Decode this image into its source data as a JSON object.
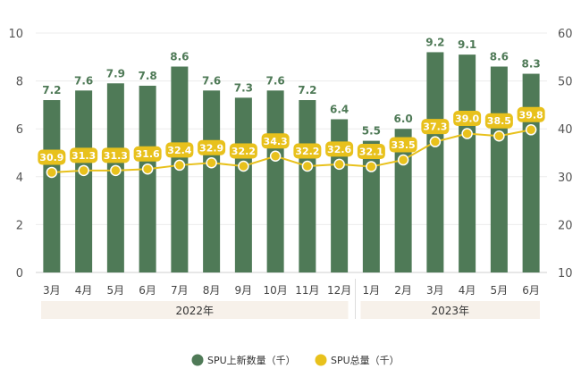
{
  "chart_data": {
    "type": "bar",
    "categories": [
      "3月",
      "4月",
      "5月",
      "6月",
      "7月",
      "8月",
      "9月",
      "10月",
      "11月",
      "12月",
      "1月",
      "2月",
      "3月",
      "4月",
      "5月",
      "6月"
    ],
    "year_groups": [
      {
        "label": "2022年",
        "count": 10
      },
      {
        "label": "2023年",
        "count": 6
      }
    ],
    "series": [
      {
        "name": "SPU上新数量（千）",
        "type": "bar",
        "axis": "left",
        "color": "#4f7a57",
        "values": [
          7.2,
          7.6,
          7.9,
          7.8,
          8.6,
          7.6,
          7.3,
          7.6,
          7.2,
          6.4,
          5.5,
          6.0,
          9.2,
          9.1,
          8.6,
          8.3
        ]
      },
      {
        "name": "SPU总量（千）",
        "type": "line",
        "axis": "right",
        "color": "#e8c11c",
        "values": [
          30.9,
          31.3,
          31.3,
          31.6,
          32.4,
          32.9,
          32.2,
          34.3,
          32.2,
          32.6,
          32.1,
          33.5,
          37.3,
          39.0,
          38.5,
          39.8
        ]
      }
    ],
    "left_axis": {
      "ticks": [
        "0",
        "2",
        "4",
        "6",
        "8",
        "10"
      ],
      "ylim": [
        0,
        10
      ]
    },
    "right_axis": {
      "ticks": [
        "10",
        "20",
        "30",
        "40",
        "50",
        "60"
      ],
      "ylim": [
        10,
        60
      ]
    },
    "grid": true,
    "legend_position": "bottom"
  }
}
